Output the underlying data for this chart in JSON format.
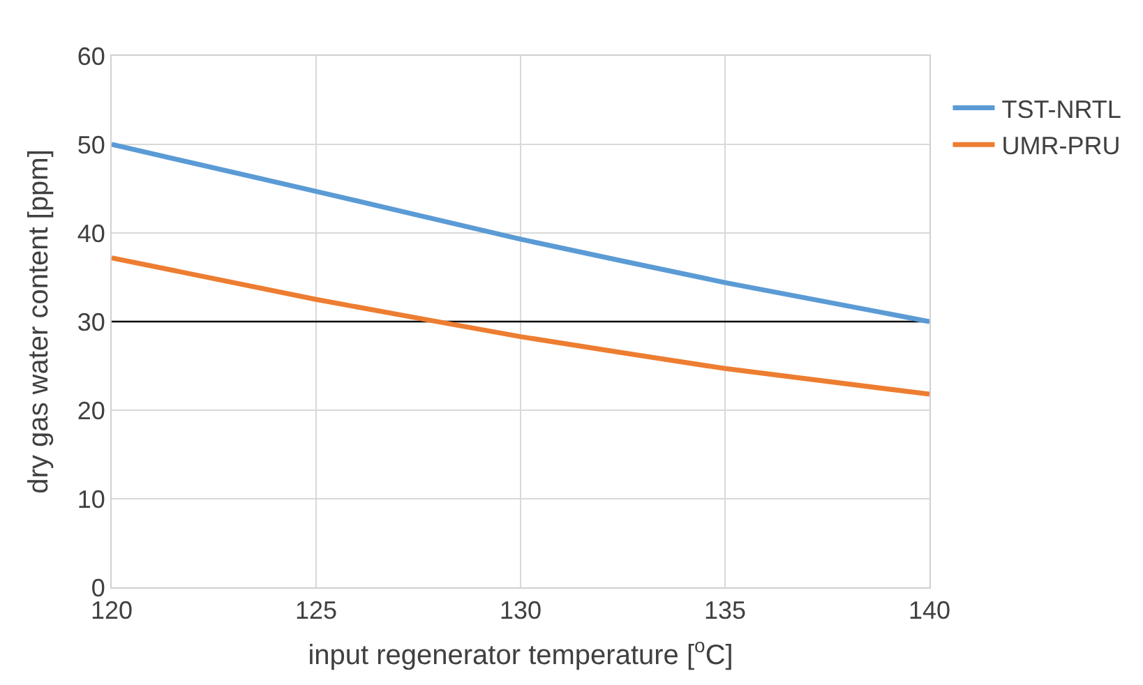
{
  "chart_data": {
    "type": "line",
    "xlabel": "input regenerator temperature [$^{o}$C]",
    "ylabel": "dry gas water content [ppm]",
    "x": [
      120,
      125,
      130,
      135,
      140
    ],
    "series": [
      {
        "name": "TST-NRTL",
        "color": "#5b9bd5",
        "values": [
          50,
          44.7,
          39.3,
          34.4,
          30.0
        ]
      },
      {
        "name": "UMR-PRU",
        "color": "#ed7d31",
        "values": [
          37.2,
          32.5,
          28.3,
          24.7,
          21.8
        ]
      }
    ],
    "xlim": [
      120,
      140
    ],
    "xticks": [
      120,
      125,
      130,
      135,
      140
    ],
    "ylim": [
      0,
      60
    ],
    "yticks": [
      0,
      10,
      20,
      30,
      40,
      50,
      60
    ],
    "ref_lines": [
      {
        "axis": "y",
        "value": 30,
        "color": "#000000"
      }
    ],
    "grid": true,
    "legend": "right",
    "marker": "none",
    "line_style": "solid"
  }
}
